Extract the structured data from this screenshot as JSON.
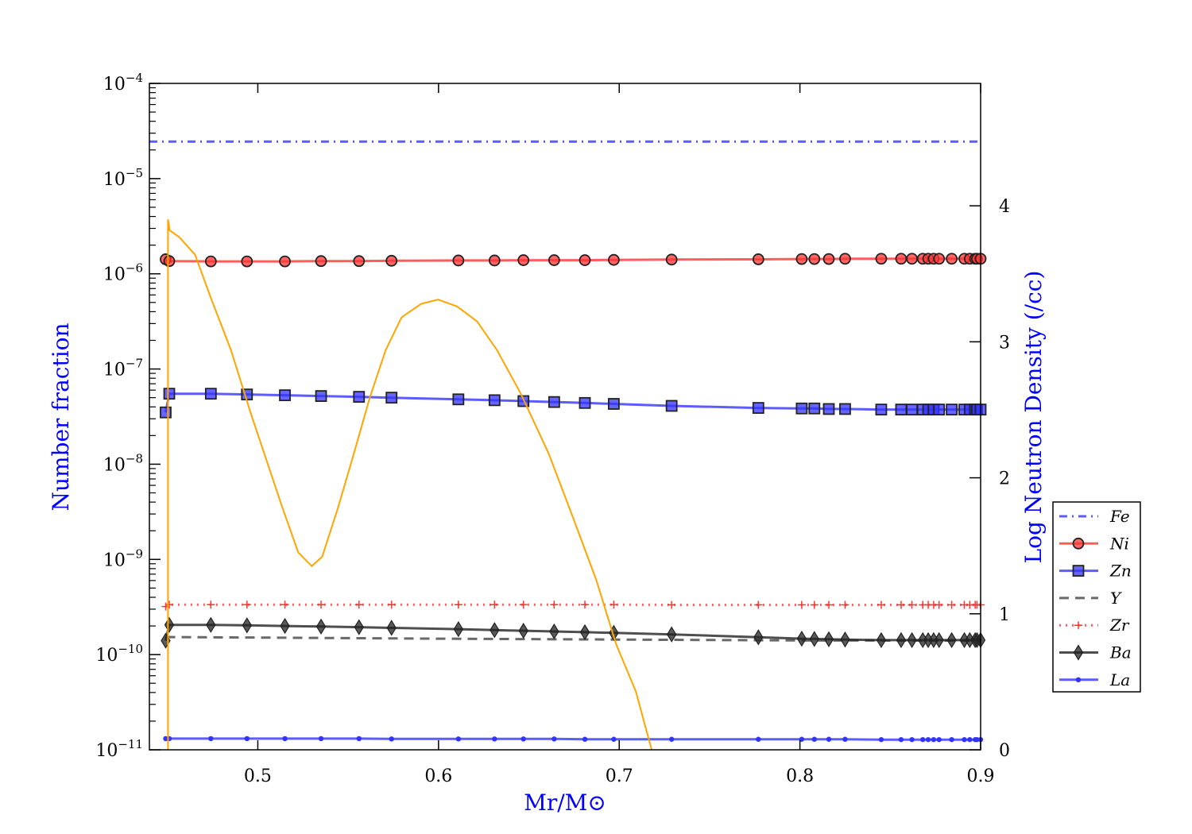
{
  "chart_data": {
    "type": "line",
    "xlabel": "Mr/M⊙",
    "ylabel_left": "Number fraction",
    "ylabel_right": "Log Neutron Density (/cc)",
    "xlim": [
      0.44,
      0.9
    ],
    "ylim_left": [
      1e-11,
      0.0001
    ],
    "yscale_left": "log",
    "ylim_right": [
      0,
      4.9
    ],
    "x_ticks": [
      "0.5",
      "0.6",
      "0.7",
      "0.8",
      "0.9"
    ],
    "y_left_ticks": [
      "-11",
      "-10",
      "-9",
      "-8",
      "-7",
      "-6",
      "-5",
      "-4"
    ],
    "y_left_tick_base": "10",
    "y_right_ticks": [
      "0",
      "1",
      "2",
      "3",
      "4"
    ],
    "legend_placement": "right-outside",
    "grid": false,
    "x": [
      0.449,
      0.451,
      0.474,
      0.494,
      0.515,
      0.535,
      0.556,
      0.574,
      0.611,
      0.631,
      0.647,
      0.664,
      0.681,
      0.697,
      0.729,
      0.777,
      0.801,
      0.808,
      0.816,
      0.825,
      0.845,
      0.856,
      0.862,
      0.868,
      0.871,
      0.874,
      0.877,
      0.884,
      0.891,
      0.894,
      0.897,
      0.898,
      0.9
    ],
    "series": [
      {
        "name": "Fe",
        "axis": "left",
        "color": "#3333ff",
        "style": "dashdot",
        "marker": "none",
        "x": [
          0.44,
          0.9
        ],
        "values": [
          2.45e-05,
          2.45e-05
        ]
      },
      {
        "name": "Ni",
        "axis": "left",
        "color": "#ff3333",
        "style": "solid",
        "marker": "circle",
        "values": [
          1.42e-06,
          1.36e-06,
          1.35e-06,
          1.35e-06,
          1.35e-06,
          1.36e-06,
          1.36e-06,
          1.37e-06,
          1.38e-06,
          1.38e-06,
          1.39e-06,
          1.39e-06,
          1.39e-06,
          1.4e-06,
          1.41e-06,
          1.42e-06,
          1.43e-06,
          1.43e-06,
          1.43e-06,
          1.44e-06,
          1.44e-06,
          1.44e-06,
          1.44e-06,
          1.44e-06,
          1.44e-06,
          1.44e-06,
          1.44e-06,
          1.44e-06,
          1.44e-06,
          1.44e-06,
          1.44e-06,
          1.44e-06,
          1.44e-06
        ]
      },
      {
        "name": "Zn",
        "axis": "left",
        "color": "#3333ff",
        "style": "solid",
        "marker": "square",
        "values": [
          3.5e-08,
          5.5e-08,
          5.5e-08,
          5.4e-08,
          5.3e-08,
          5.2e-08,
          5.1e-08,
          5e-08,
          4.8e-08,
          4.7e-08,
          4.6e-08,
          4.5e-08,
          4.4e-08,
          4.3e-08,
          4.1e-08,
          3.9e-08,
          3.85e-08,
          3.85e-08,
          3.8e-08,
          3.8e-08,
          3.75e-08,
          3.75e-08,
          3.75e-08,
          3.75e-08,
          3.75e-08,
          3.75e-08,
          3.75e-08,
          3.75e-08,
          3.75e-08,
          3.75e-08,
          3.75e-08,
          3.75e-08,
          3.75e-08
        ]
      },
      {
        "name": "Y",
        "axis": "left",
        "color": "#444444",
        "style": "dashed",
        "marker": "none",
        "x": [
          0.449,
          0.6,
          0.8,
          0.9
        ],
        "values": [
          1.53e-10,
          1.47e-10,
          1.41e-10,
          1.4e-10
        ]
      },
      {
        "name": "Zr",
        "axis": "left",
        "color": "#ff3333",
        "style": "dotted",
        "marker": "plus",
        "values": [
          3.2e-10,
          3.35e-10,
          3.35e-10,
          3.35e-10,
          3.35e-10,
          3.35e-10,
          3.35e-10,
          3.35e-10,
          3.35e-10,
          3.35e-10,
          3.35e-10,
          3.35e-10,
          3.35e-10,
          3.35e-10,
          3.33e-10,
          3.33e-10,
          3.33e-10,
          3.33e-10,
          3.33e-10,
          3.33e-10,
          3.33e-10,
          3.33e-10,
          3.33e-10,
          3.33e-10,
          3.33e-10,
          3.33e-10,
          3.33e-10,
          3.33e-10,
          3.33e-10,
          3.33e-10,
          3.33e-10,
          3.33e-10,
          3.33e-10
        ]
      },
      {
        "name": "Ba",
        "axis": "left",
        "color": "#222222",
        "style": "solid",
        "marker": "diamond",
        "values": [
          1.4e-10,
          2.05e-10,
          2.05e-10,
          2.03e-10,
          2e-10,
          1.97e-10,
          1.94e-10,
          1.91e-10,
          1.85e-10,
          1.81e-10,
          1.78e-10,
          1.75e-10,
          1.72e-10,
          1.69e-10,
          1.63e-10,
          1.52e-10,
          1.47e-10,
          1.46e-10,
          1.45e-10,
          1.44e-10,
          1.42e-10,
          1.42e-10,
          1.42e-10,
          1.42e-10,
          1.42e-10,
          1.42e-10,
          1.42e-10,
          1.42e-10,
          1.42e-10,
          1.42e-10,
          1.42e-10,
          1.42e-10,
          1.42e-10
        ]
      },
      {
        "name": "La",
        "axis": "left",
        "color": "#3333ff",
        "style": "solid",
        "marker": "dot",
        "values": [
          1.31e-11,
          1.31e-11,
          1.31e-11,
          1.31e-11,
          1.31e-11,
          1.31e-11,
          1.31e-11,
          1.3e-11,
          1.3e-11,
          1.3e-11,
          1.3e-11,
          1.3e-11,
          1.29e-11,
          1.29e-11,
          1.29e-11,
          1.29e-11,
          1.29e-11,
          1.29e-11,
          1.29e-11,
          1.29e-11,
          1.28e-11,
          1.28e-11,
          1.28e-11,
          1.28e-11,
          1.28e-11,
          1.28e-11,
          1.28e-11,
          1.28e-11,
          1.28e-11,
          1.28e-11,
          1.28e-11,
          1.28e-11,
          1.28e-11
        ]
      },
      {
        "axis": "right",
        "color": "#ffa500",
        "style": "solid",
        "marker": "none",
        "x": [
          0.4503,
          0.4503,
          0.4512,
          0.4565,
          0.4653,
          0.4741,
          0.4851,
          0.496,
          0.5048,
          0.5136,
          0.5224,
          0.5299,
          0.5356,
          0.5444,
          0.5532,
          0.562,
          0.5708,
          0.5796,
          0.5905,
          0.5998,
          0.6103,
          0.6213,
          0.6323,
          0.6455,
          0.6609,
          0.6741,
          0.6873,
          0.6982,
          0.7092,
          0.718
        ],
        "values": [
          0,
          3.9,
          3.82,
          3.77,
          3.64,
          3.32,
          2.94,
          2.48,
          2.13,
          1.78,
          1.45,
          1.35,
          1.42,
          1.78,
          2.18,
          2.59,
          2.94,
          3.18,
          3.28,
          3.31,
          3.26,
          3.15,
          2.94,
          2.62,
          2.18,
          1.72,
          1.25,
          0.78,
          0.43,
          0
        ]
      }
    ]
  }
}
